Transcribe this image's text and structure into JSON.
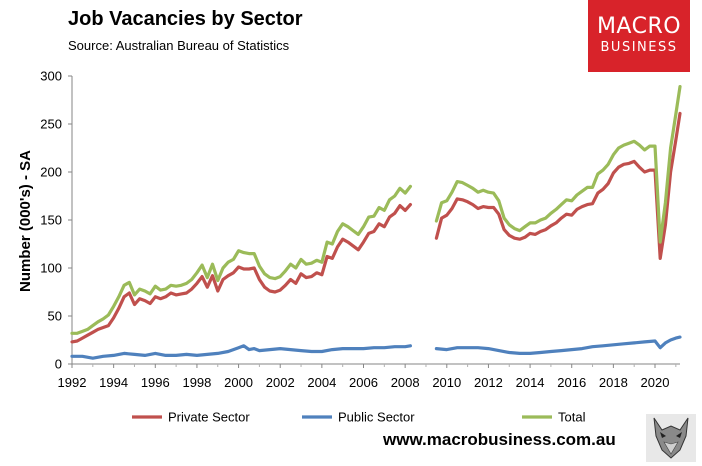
{
  "chart_data": {
    "type": "line",
    "title": "Job Vacancies by Sector",
    "subtitle": "Source: Australian Bureau of Statistics",
    "ylabel": "Number (000's) - SA",
    "xlabel": "",
    "ylim": [
      0,
      300
    ],
    "xlim": [
      1992,
      2021.2
    ],
    "yticks": [
      0,
      50,
      100,
      150,
      200,
      250,
      300
    ],
    "xticks": [
      1992,
      1994,
      1996,
      1998,
      2000,
      2002,
      2004,
      2006,
      2008,
      2010,
      2012,
      2014,
      2016,
      2018,
      2020
    ],
    "gap": [
      2008.5,
      2009.5
    ],
    "series": [
      {
        "name": "Private Sector",
        "color": "#c0504d",
        "points": [
          [
            1992.0,
            23
          ],
          [
            1992.25,
            24
          ],
          [
            1992.5,
            27
          ],
          [
            1992.75,
            30
          ],
          [
            1993.0,
            33
          ],
          [
            1993.25,
            36
          ],
          [
            1993.5,
            38
          ],
          [
            1993.75,
            40
          ],
          [
            1994.0,
            48
          ],
          [
            1994.25,
            58
          ],
          [
            1994.5,
            70
          ],
          [
            1994.75,
            74
          ],
          [
            1995.0,
            62
          ],
          [
            1995.25,
            68
          ],
          [
            1995.5,
            66
          ],
          [
            1995.75,
            63
          ],
          [
            1996.0,
            70
          ],
          [
            1996.25,
            68
          ],
          [
            1996.5,
            70
          ],
          [
            1996.75,
            74
          ],
          [
            1997.0,
            72
          ],
          [
            1997.25,
            73
          ],
          [
            1997.5,
            74
          ],
          [
            1997.75,
            78
          ],
          [
            1998.0,
            84
          ],
          [
            1998.25,
            91
          ],
          [
            1998.5,
            80
          ],
          [
            1998.75,
            92
          ],
          [
            1999.0,
            76
          ],
          [
            1999.25,
            88
          ],
          [
            1999.5,
            92
          ],
          [
            1999.75,
            95
          ],
          [
            2000.0,
            101
          ],
          [
            2000.25,
            99
          ],
          [
            2000.5,
            99
          ],
          [
            2000.75,
            100
          ],
          [
            2001.0,
            88
          ],
          [
            2001.25,
            80
          ],
          [
            2001.5,
            76
          ],
          [
            2001.75,
            75
          ],
          [
            2002.0,
            77
          ],
          [
            2002.25,
            82
          ],
          [
            2002.5,
            88
          ],
          [
            2002.75,
            84
          ],
          [
            2003.0,
            94
          ],
          [
            2003.25,
            90
          ],
          [
            2003.5,
            91
          ],
          [
            2003.75,
            95
          ],
          [
            2004.0,
            93
          ],
          [
            2004.25,
            112
          ],
          [
            2004.5,
            110
          ],
          [
            2004.75,
            122
          ],
          [
            2005.0,
            130
          ],
          [
            2005.25,
            127
          ],
          [
            2005.5,
            123
          ],
          [
            2005.75,
            119
          ],
          [
            2006.0,
            127
          ],
          [
            2006.25,
            136
          ],
          [
            2006.5,
            138
          ],
          [
            2006.75,
            146
          ],
          [
            2007.0,
            143
          ],
          [
            2007.25,
            153
          ],
          [
            2007.5,
            157
          ],
          [
            2007.75,
            165
          ],
          [
            2008.0,
            160
          ],
          [
            2008.25,
            166
          ],
          [
            2009.5,
            131
          ],
          [
            2009.75,
            152
          ],
          [
            2010.0,
            155
          ],
          [
            2010.25,
            162
          ],
          [
            2010.5,
            172
          ],
          [
            2010.75,
            171
          ],
          [
            2011.0,
            169
          ],
          [
            2011.25,
            166
          ],
          [
            2011.5,
            162
          ],
          [
            2011.75,
            164
          ],
          [
            2012.0,
            163
          ],
          [
            2012.25,
            163
          ],
          [
            2012.5,
            156
          ],
          [
            2012.75,
            140
          ],
          [
            2013.0,
            134
          ],
          [
            2013.25,
            131
          ],
          [
            2013.5,
            130
          ],
          [
            2013.75,
            132
          ],
          [
            2014.0,
            136
          ],
          [
            2014.25,
            135
          ],
          [
            2014.5,
            138
          ],
          [
            2014.75,
            140
          ],
          [
            2015.0,
            144
          ],
          [
            2015.25,
            147
          ],
          [
            2015.5,
            152
          ],
          [
            2015.75,
            156
          ],
          [
            2016.0,
            155
          ],
          [
            2016.25,
            161
          ],
          [
            2016.5,
            164
          ],
          [
            2016.75,
            166
          ],
          [
            2017.0,
            167
          ],
          [
            2017.25,
            178
          ],
          [
            2017.5,
            182
          ],
          [
            2017.75,
            188
          ],
          [
            2018.0,
            199
          ],
          [
            2018.25,
            205
          ],
          [
            2018.5,
            208
          ],
          [
            2018.75,
            209
          ],
          [
            2019.0,
            211
          ],
          [
            2019.25,
            205
          ],
          [
            2019.5,
            200
          ],
          [
            2019.75,
            202
          ],
          [
            2020.0,
            202
          ],
          [
            2020.25,
            110
          ],
          [
            2020.5,
            145
          ],
          [
            2020.75,
            200
          ],
          [
            2021.0,
            233
          ],
          [
            2021.2,
            261
          ]
        ]
      },
      {
        "name": "Public Sector",
        "color": "#4f81bd",
        "points": [
          [
            1992.0,
            8
          ],
          [
            1992.5,
            8
          ],
          [
            1993.0,
            6
          ],
          [
            1993.5,
            8
          ],
          [
            1994.0,
            9
          ],
          [
            1994.5,
            11
          ],
          [
            1995.0,
            10
          ],
          [
            1995.5,
            9
          ],
          [
            1996.0,
            11
          ],
          [
            1996.5,
            9
          ],
          [
            1997.0,
            9
          ],
          [
            1997.5,
            10
          ],
          [
            1998.0,
            9
          ],
          [
            1998.5,
            10
          ],
          [
            1999.0,
            11
          ],
          [
            1999.5,
            13
          ],
          [
            2000.0,
            17
          ],
          [
            2000.25,
            19
          ],
          [
            2000.5,
            15
          ],
          [
            2000.75,
            16
          ],
          [
            2001.0,
            14
          ],
          [
            2001.5,
            15
          ],
          [
            2002.0,
            16
          ],
          [
            2002.5,
            15
          ],
          [
            2003.0,
            14
          ],
          [
            2003.5,
            13
          ],
          [
            2004.0,
            13
          ],
          [
            2004.5,
            15
          ],
          [
            2005.0,
            16
          ],
          [
            2005.5,
            16
          ],
          [
            2006.0,
            16
          ],
          [
            2006.5,
            17
          ],
          [
            2007.0,
            17
          ],
          [
            2007.5,
            18
          ],
          [
            2008.0,
            18
          ],
          [
            2008.25,
            19
          ],
          [
            2009.5,
            16
          ],
          [
            2010.0,
            15
          ],
          [
            2010.5,
            17
          ],
          [
            2011.0,
            17
          ],
          [
            2011.5,
            17
          ],
          [
            2012.0,
            16
          ],
          [
            2012.5,
            14
          ],
          [
            2013.0,
            12
          ],
          [
            2013.5,
            11
          ],
          [
            2014.0,
            11
          ],
          [
            2014.5,
            12
          ],
          [
            2015.0,
            13
          ],
          [
            2015.5,
            14
          ],
          [
            2016.0,
            15
          ],
          [
            2016.5,
            16
          ],
          [
            2017.0,
            18
          ],
          [
            2017.5,
            19
          ],
          [
            2018.0,
            20
          ],
          [
            2018.5,
            21
          ],
          [
            2019.0,
            22
          ],
          [
            2019.5,
            23
          ],
          [
            2020.0,
            24
          ],
          [
            2020.25,
            17
          ],
          [
            2020.5,
            22
          ],
          [
            2020.75,
            25
          ],
          [
            2021.0,
            27
          ],
          [
            2021.2,
            28
          ]
        ]
      },
      {
        "name": "Total",
        "color": "#9bbb59",
        "points": [
          [
            1992.0,
            32
          ],
          [
            1992.25,
            32
          ],
          [
            1992.5,
            34
          ],
          [
            1992.75,
            36
          ],
          [
            1993.0,
            40
          ],
          [
            1993.25,
            44
          ],
          [
            1993.5,
            47
          ],
          [
            1993.75,
            51
          ],
          [
            1994.0,
            60
          ],
          [
            1994.25,
            70
          ],
          [
            1994.5,
            82
          ],
          [
            1994.75,
            85
          ],
          [
            1995.0,
            72
          ],
          [
            1995.25,
            78
          ],
          [
            1995.5,
            76
          ],
          [
            1995.75,
            73
          ],
          [
            1996.0,
            81
          ],
          [
            1996.25,
            77
          ],
          [
            1996.5,
            78
          ],
          [
            1996.75,
            82
          ],
          [
            1997.0,
            81
          ],
          [
            1997.25,
            82
          ],
          [
            1997.5,
            84
          ],
          [
            1997.75,
            88
          ],
          [
            1998.0,
            95
          ],
          [
            1998.25,
            103
          ],
          [
            1998.5,
            90
          ],
          [
            1998.75,
            104
          ],
          [
            1999.0,
            87
          ],
          [
            1999.25,
            100
          ],
          [
            1999.5,
            106
          ],
          [
            1999.75,
            109
          ],
          [
            2000.0,
            118
          ],
          [
            2000.25,
            116
          ],
          [
            2000.5,
            115
          ],
          [
            2000.75,
            115
          ],
          [
            2001.0,
            102
          ],
          [
            2001.25,
            94
          ],
          [
            2001.5,
            90
          ],
          [
            2001.75,
            89
          ],
          [
            2002.0,
            91
          ],
          [
            2002.25,
            97
          ],
          [
            2002.5,
            104
          ],
          [
            2002.75,
            100
          ],
          [
            2003.0,
            109
          ],
          [
            2003.25,
            104
          ],
          [
            2003.5,
            105
          ],
          [
            2003.75,
            108
          ],
          [
            2004.0,
            106
          ],
          [
            2004.25,
            127
          ],
          [
            2004.5,
            125
          ],
          [
            2004.75,
            138
          ],
          [
            2005.0,
            146
          ],
          [
            2005.25,
            143
          ],
          [
            2005.5,
            139
          ],
          [
            2005.75,
            135
          ],
          [
            2006.0,
            143
          ],
          [
            2006.25,
            153
          ],
          [
            2006.5,
            154
          ],
          [
            2006.75,
            163
          ],
          [
            2007.0,
            160
          ],
          [
            2007.25,
            171
          ],
          [
            2007.5,
            175
          ],
          [
            2007.75,
            183
          ],
          [
            2008.0,
            178
          ],
          [
            2008.25,
            185
          ],
          [
            2009.5,
            149
          ],
          [
            2009.75,
            168
          ],
          [
            2010.0,
            170
          ],
          [
            2010.25,
            179
          ],
          [
            2010.5,
            190
          ],
          [
            2010.75,
            189
          ],
          [
            2011.0,
            186
          ],
          [
            2011.25,
            183
          ],
          [
            2011.5,
            179
          ],
          [
            2011.75,
            181
          ],
          [
            2012.0,
            179
          ],
          [
            2012.25,
            178
          ],
          [
            2012.5,
            170
          ],
          [
            2012.75,
            152
          ],
          [
            2013.0,
            145
          ],
          [
            2013.25,
            141
          ],
          [
            2013.5,
            139
          ],
          [
            2013.75,
            143
          ],
          [
            2014.0,
            147
          ],
          [
            2014.25,
            147
          ],
          [
            2014.5,
            150
          ],
          [
            2014.75,
            152
          ],
          [
            2015.0,
            157
          ],
          [
            2015.25,
            161
          ],
          [
            2015.5,
            166
          ],
          [
            2015.75,
            171
          ],
          [
            2016.0,
            170
          ],
          [
            2016.25,
            176
          ],
          [
            2016.5,
            180
          ],
          [
            2016.75,
            184
          ],
          [
            2017.0,
            184
          ],
          [
            2017.25,
            198
          ],
          [
            2017.5,
            202
          ],
          [
            2017.75,
            208
          ],
          [
            2018.0,
            218
          ],
          [
            2018.25,
            225
          ],
          [
            2018.5,
            228
          ],
          [
            2018.75,
            230
          ],
          [
            2019.0,
            232
          ],
          [
            2019.25,
            228
          ],
          [
            2019.5,
            223
          ],
          [
            2019.75,
            227
          ],
          [
            2020.0,
            227
          ],
          [
            2020.25,
            127
          ],
          [
            2020.5,
            168
          ],
          [
            2020.75,
            225
          ],
          [
            2021.0,
            260
          ],
          [
            2021.2,
            289
          ]
        ]
      }
    ],
    "legend": [
      "Private Sector",
      "Public Sector",
      "Total"
    ],
    "legend_position": "bottom"
  },
  "logo": {
    "line1": "MACRO",
    "line2": "BUSINESS",
    "color": "#d8232a"
  },
  "website": "www.macrobusiness.com.au"
}
